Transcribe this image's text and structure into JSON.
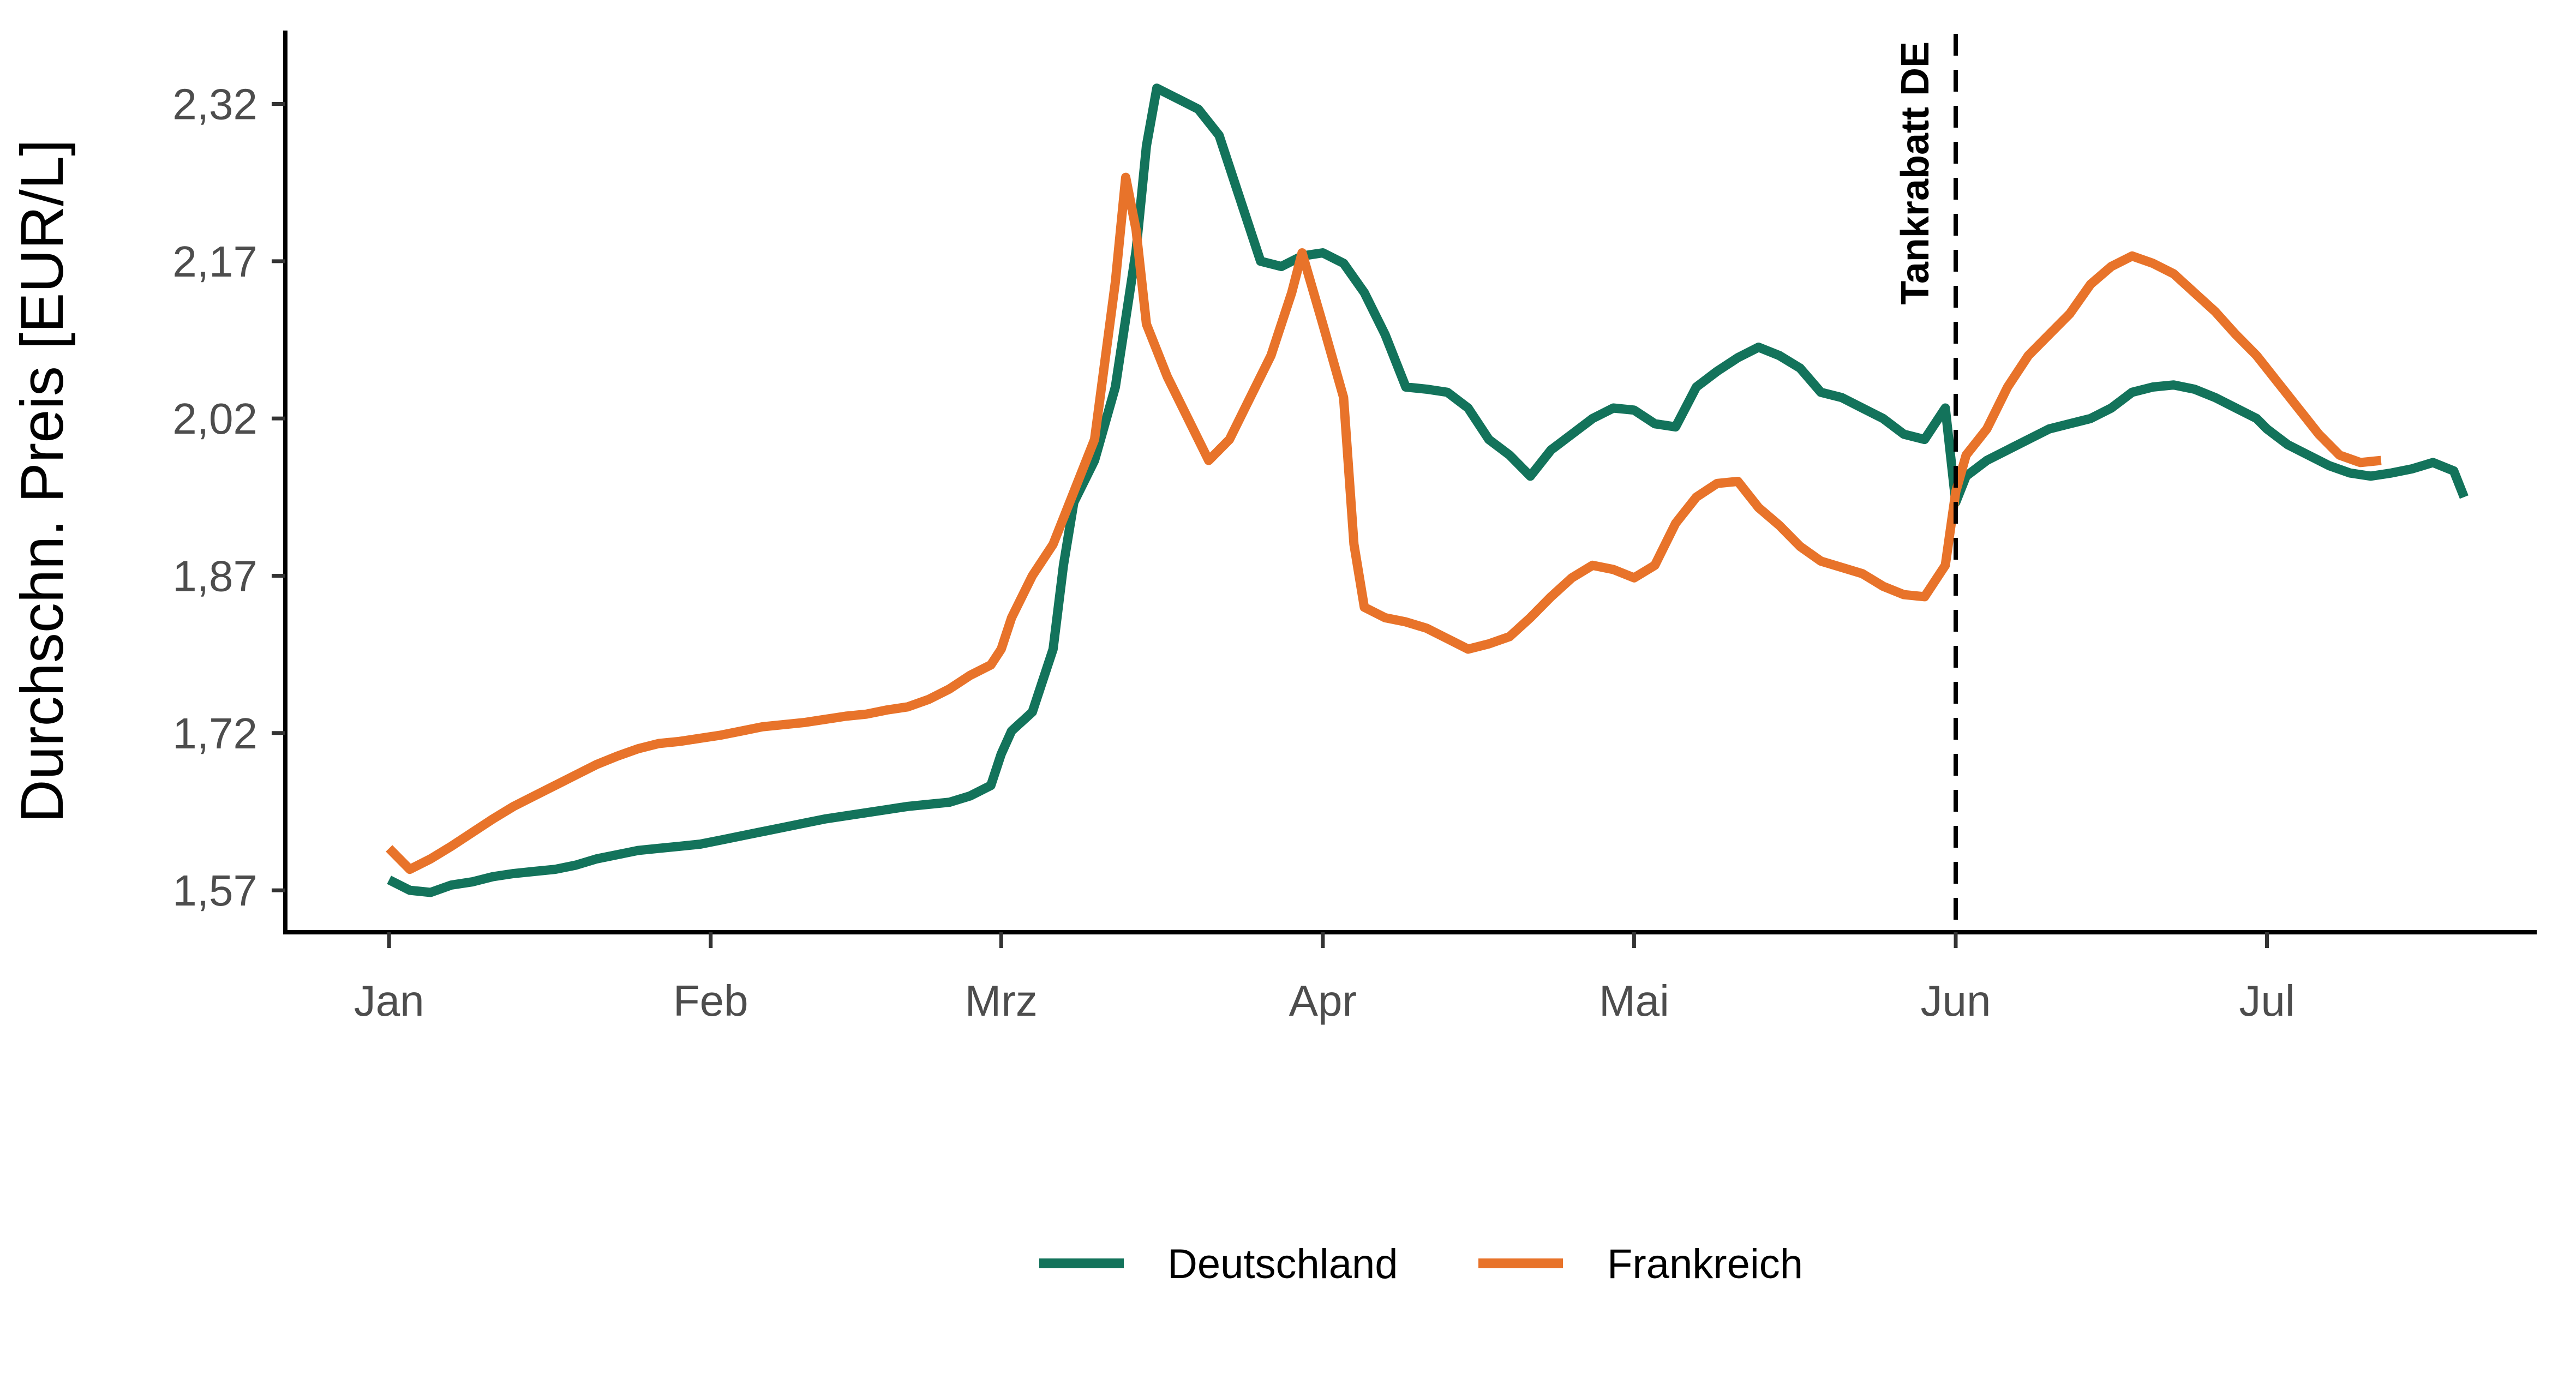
{
  "chart_data": {
    "type": "line",
    "ylabel": "Durchschn. Preis [EUR/L]",
    "xlabel": "",
    "x_unit": "day of 2022",
    "x_ticks": [
      {
        "label": "Jan",
        "day": 0
      },
      {
        "label": "Feb",
        "day": 31
      },
      {
        "label": "Mrz",
        "day": 59
      },
      {
        "label": "Apr",
        "day": 90
      },
      {
        "label": "Mai",
        "day": 120
      },
      {
        "label": "Jun",
        "day": 151
      },
      {
        "label": "Jul",
        "day": 181
      }
    ],
    "y_ticks": [
      "1,57",
      "1,72",
      "1,87",
      "2,02",
      "2,17",
      "2,32"
    ],
    "y_tick_values": [
      1.57,
      1.72,
      1.87,
      2.02,
      2.17,
      2.32
    ],
    "xlim": [
      -10,
      207
    ],
    "ylim": [
      1.53,
      2.39
    ],
    "annotation": {
      "label": "Tankrabatt DE",
      "day": 151
    },
    "legend_position": "bottom",
    "grid": false,
    "series": [
      {
        "name": "Deutschland",
        "color": "#13735b",
        "points": [
          [
            0,
            1.58
          ],
          [
            2,
            1.57
          ],
          [
            4,
            1.568
          ],
          [
            6,
            1.575
          ],
          [
            8,
            1.578
          ],
          [
            10,
            1.583
          ],
          [
            12,
            1.586
          ],
          [
            14,
            1.588
          ],
          [
            16,
            1.59
          ],
          [
            18,
            1.594
          ],
          [
            20,
            1.6
          ],
          [
            22,
            1.604
          ],
          [
            24,
            1.608
          ],
          [
            26,
            1.61
          ],
          [
            28,
            1.612
          ],
          [
            30,
            1.614
          ],
          [
            32,
            1.618
          ],
          [
            34,
            1.622
          ],
          [
            36,
            1.626
          ],
          [
            38,
            1.63
          ],
          [
            40,
            1.634
          ],
          [
            42,
            1.638
          ],
          [
            44,
            1.641
          ],
          [
            46,
            1.644
          ],
          [
            48,
            1.647
          ],
          [
            50,
            1.65
          ],
          [
            52,
            1.652
          ],
          [
            54,
            1.654
          ],
          [
            56,
            1.66
          ],
          [
            58,
            1.67
          ],
          [
            59,
            1.7
          ],
          [
            60,
            1.722
          ],
          [
            62,
            1.74
          ],
          [
            64,
            1.8
          ],
          [
            65,
            1.88
          ],
          [
            66,
            1.94
          ],
          [
            68,
            1.98
          ],
          [
            70,
            2.05
          ],
          [
            72,
            2.18
          ],
          [
            73,
            2.28
          ],
          [
            74,
            2.335
          ],
          [
            76,
            2.325
          ],
          [
            78,
            2.315
          ],
          [
            80,
            2.29
          ],
          [
            82,
            2.23
          ],
          [
            84,
            2.17
          ],
          [
            86,
            2.165
          ],
          [
            88,
            2.175
          ],
          [
            90,
            2.178
          ],
          [
            92,
            2.168
          ],
          [
            94,
            2.14
          ],
          [
            96,
            2.1
          ],
          [
            98,
            2.05
          ],
          [
            100,
            2.048
          ],
          [
            102,
            2.045
          ],
          [
            104,
            2.03
          ],
          [
            106,
            2.0
          ],
          [
            108,
            1.985
          ],
          [
            110,
            1.965
          ],
          [
            112,
            1.99
          ],
          [
            114,
            2.005
          ],
          [
            116,
            2.02
          ],
          [
            118,
            2.03
          ],
          [
            120,
            2.028
          ],
          [
            122,
            2.015
          ],
          [
            124,
            2.012
          ],
          [
            126,
            2.05
          ],
          [
            128,
            2.065
          ],
          [
            130,
            2.078
          ],
          [
            132,
            2.088
          ],
          [
            134,
            2.08
          ],
          [
            136,
            2.068
          ],
          [
            138,
            2.045
          ],
          [
            140,
            2.04
          ],
          [
            142,
            2.03
          ],
          [
            144,
            2.02
          ],
          [
            146,
            2.005
          ],
          [
            148,
            2.0
          ],
          [
            150,
            2.03
          ],
          [
            151,
            1.94
          ],
          [
            152,
            1.965
          ],
          [
            154,
            1.98
          ],
          [
            156,
            1.99
          ],
          [
            158,
            2.0
          ],
          [
            160,
            2.01
          ],
          [
            162,
            2.015
          ],
          [
            164,
            2.02
          ],
          [
            166,
            2.03
          ],
          [
            168,
            2.045
          ],
          [
            170,
            2.05
          ],
          [
            172,
            2.052
          ],
          [
            174,
            2.048
          ],
          [
            176,
            2.04
          ],
          [
            178,
            2.03
          ],
          [
            180,
            2.02
          ],
          [
            181,
            2.01
          ],
          [
            183,
            1.995
          ],
          [
            185,
            1.985
          ],
          [
            187,
            1.975
          ],
          [
            189,
            1.968
          ],
          [
            191,
            1.965
          ],
          [
            193,
            1.968
          ],
          [
            195,
            1.972
          ],
          [
            197,
            1.978
          ],
          [
            199,
            1.97
          ],
          [
            200,
            1.945
          ]
        ]
      },
      {
        "name": "Frankreich",
        "color": "#e8732a",
        "points": [
          [
            0,
            1.61
          ],
          [
            2,
            1.59
          ],
          [
            4,
            1.6
          ],
          [
            6,
            1.612
          ],
          [
            8,
            1.625
          ],
          [
            10,
            1.638
          ],
          [
            12,
            1.65
          ],
          [
            14,
            1.66
          ],
          [
            16,
            1.67
          ],
          [
            18,
            1.68
          ],
          [
            20,
            1.69
          ],
          [
            22,
            1.698
          ],
          [
            24,
            1.705
          ],
          [
            26,
            1.71
          ],
          [
            28,
            1.712
          ],
          [
            30,
            1.715
          ],
          [
            32,
            1.718
          ],
          [
            34,
            1.722
          ],
          [
            36,
            1.726
          ],
          [
            38,
            1.728
          ],
          [
            40,
            1.73
          ],
          [
            42,
            1.733
          ],
          [
            44,
            1.736
          ],
          [
            46,
            1.738
          ],
          [
            48,
            1.742
          ],
          [
            50,
            1.745
          ],
          [
            52,
            1.752
          ],
          [
            54,
            1.762
          ],
          [
            56,
            1.775
          ],
          [
            58,
            1.785
          ],
          [
            59,
            1.8
          ],
          [
            60,
            1.83
          ],
          [
            62,
            1.87
          ],
          [
            64,
            1.9
          ],
          [
            66,
            1.95
          ],
          [
            68,
            2.0
          ],
          [
            70,
            2.15
          ],
          [
            71,
            2.25
          ],
          [
            72,
            2.2
          ],
          [
            73,
            2.11
          ],
          [
            75,
            2.06
          ],
          [
            77,
            2.02
          ],
          [
            79,
            1.98
          ],
          [
            81,
            2.0
          ],
          [
            83,
            2.04
          ],
          [
            85,
            2.08
          ],
          [
            87,
            2.14
          ],
          [
            88,
            2.178
          ],
          [
            90,
            2.11
          ],
          [
            92,
            2.04
          ],
          [
            93,
            1.9
          ],
          [
            94,
            1.84
          ],
          [
            96,
            1.83
          ],
          [
            98,
            1.826
          ],
          [
            100,
            1.82
          ],
          [
            102,
            1.81
          ],
          [
            104,
            1.8
          ],
          [
            106,
            1.805
          ],
          [
            108,
            1.812
          ],
          [
            110,
            1.83
          ],
          [
            112,
            1.85
          ],
          [
            114,
            1.868
          ],
          [
            116,
            1.88
          ],
          [
            118,
            1.876
          ],
          [
            120,
            1.868
          ],
          [
            122,
            1.88
          ],
          [
            124,
            1.92
          ],
          [
            126,
            1.945
          ],
          [
            128,
            1.958
          ],
          [
            130,
            1.96
          ],
          [
            132,
            1.935
          ],
          [
            134,
            1.918
          ],
          [
            136,
            1.898
          ],
          [
            138,
            1.884
          ],
          [
            140,
            1.878
          ],
          [
            142,
            1.872
          ],
          [
            144,
            1.86
          ],
          [
            146,
            1.852
          ],
          [
            148,
            1.85
          ],
          [
            150,
            1.88
          ],
          [
            151,
            1.95
          ],
          [
            152,
            1.985
          ],
          [
            154,
            2.01
          ],
          [
            156,
            2.05
          ],
          [
            158,
            2.08
          ],
          [
            160,
            2.1
          ],
          [
            162,
            2.12
          ],
          [
            164,
            2.148
          ],
          [
            166,
            2.165
          ],
          [
            168,
            2.175
          ],
          [
            170,
            2.168
          ],
          [
            172,
            2.158
          ],
          [
            174,
            2.14
          ],
          [
            176,
            2.122
          ],
          [
            178,
            2.1
          ],
          [
            180,
            2.08
          ],
          [
            182,
            2.055
          ],
          [
            184,
            2.03
          ],
          [
            186,
            2.005
          ],
          [
            188,
            1.985
          ],
          [
            190,
            1.978
          ],
          [
            192,
            1.98
          ]
        ]
      }
    ]
  }
}
